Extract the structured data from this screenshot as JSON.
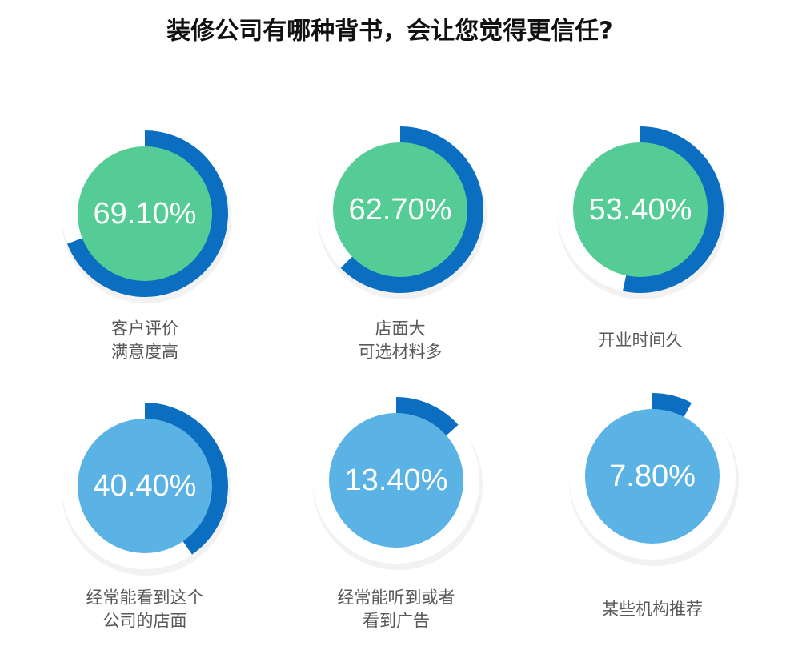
{
  "chart_data": {
    "type": "ring",
    "title": "装修公司有哪种背书，会让您觉得更信任?",
    "categories": [
      [
        "客户评价",
        "满意度高"
      ],
      [
        "店面大",
        "可选材料多"
      ],
      [
        "开业时间久"
      ],
      [
        "经常能看到这个",
        "公司的店面"
      ],
      [
        "经常能听到或者",
        "看到广告"
      ],
      [
        "某些机构推荐"
      ]
    ],
    "values": [
      69.1,
      62.7,
      53.4,
      40.4,
      13.4,
      7.8
    ],
    "value_labels": [
      "69.10%",
      "62.70%",
      "53.40%",
      "40.40%",
      "13.40%",
      "7.80%"
    ],
    "colors": [
      "#55cc96",
      "#55cc96",
      "#55cc96",
      "#5ab3e4",
      "#5ab3e4",
      "#5ab3e4"
    ],
    "arc_color": "#0b6ec1",
    "max": 100
  }
}
